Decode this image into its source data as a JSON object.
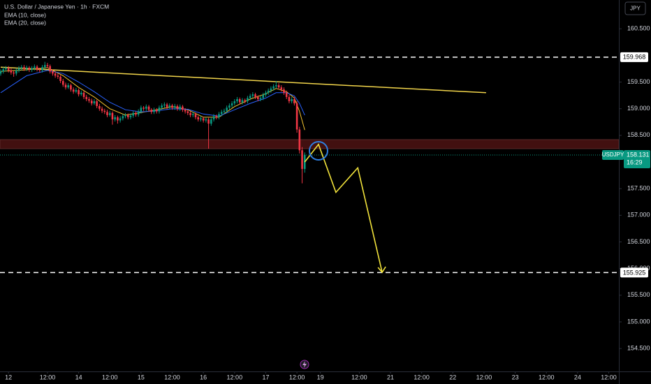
{
  "chart_data": {
    "type": "candlestick",
    "title": "U.S. Dollar / Japanese Yen · 1h · FXCM",
    "indicators": [
      "EMA (10, close)",
      "EMA (20, close)"
    ],
    "currency": "JPY",
    "symbol": "USDJPY",
    "last_price": 158.131,
    "countdown": "16:29",
    "up_color": "#089981",
    "down_color": "#f23645",
    "ylim": [
      154.07,
      161.04
    ],
    "xlim": [
      0,
      238
    ],
    "yticks": [
      {
        "value": 160.5,
        "label": "160.500"
      },
      {
        "value": 159.5,
        "label": "159.500"
      },
      {
        "value": 159,
        "label": "159.000"
      },
      {
        "value": 158.5,
        "label": "158.500"
      },
      {
        "value": 157.5,
        "label": "157.500"
      },
      {
        "value": 157,
        "label": "157.000"
      },
      {
        "value": 156.5,
        "label": "156.500"
      },
      {
        "value": 156,
        "label": "156.000"
      },
      {
        "value": 155.5,
        "label": "155.500"
      },
      {
        "value": 155,
        "label": "155.000"
      },
      {
        "value": 154.5,
        "label": "154.500"
      }
    ],
    "xticks": [
      {
        "value": 3,
        "label": "12"
      },
      {
        "value": 18,
        "label": "12:00"
      },
      {
        "value": 30,
        "label": "14"
      },
      {
        "value": 42,
        "label": "12:00"
      },
      {
        "value": 54,
        "label": "15"
      },
      {
        "value": 66,
        "label": "12:00"
      },
      {
        "value": 78,
        "label": "16"
      },
      {
        "value": 90,
        "label": "12:00"
      },
      {
        "value": 102,
        "label": "17"
      },
      {
        "value": 114,
        "label": "12:00"
      },
      {
        "value": 123,
        "label": "19"
      },
      {
        "value": 138,
        "label": "12:00"
      },
      {
        "value": 150,
        "label": "21"
      },
      {
        "value": 162,
        "label": "12:00"
      },
      {
        "value": 174,
        "label": "22"
      },
      {
        "value": 186,
        "label": "12:00"
      },
      {
        "value": 198,
        "label": "23"
      },
      {
        "value": 210,
        "label": "12:00"
      },
      {
        "value": 222,
        "label": "24"
      },
      {
        "value": 234,
        "label": "12:00"
      }
    ],
    "ohlc": [
      [
        159.66,
        159.74,
        159.62,
        159.7
      ],
      [
        159.7,
        159.78,
        159.66,
        159.74
      ],
      [
        159.74,
        159.8,
        159.7,
        159.76
      ],
      [
        159.76,
        159.8,
        159.68,
        159.72
      ],
      [
        159.72,
        159.76,
        159.64,
        159.68
      ],
      [
        159.68,
        159.71,
        159.6,
        159.66
      ],
      [
        159.66,
        159.76,
        159.62,
        159.72
      ],
      [
        159.72,
        159.8,
        159.68,
        159.76
      ],
      [
        159.76,
        159.82,
        159.72,
        159.78
      ],
      [
        159.78,
        159.82,
        159.71,
        159.75
      ],
      [
        159.75,
        159.81,
        159.71,
        159.77
      ],
      [
        159.77,
        159.8,
        159.69,
        159.73
      ],
      [
        159.73,
        159.8,
        159.69,
        159.76
      ],
      [
        159.76,
        159.83,
        159.72,
        159.79
      ],
      [
        159.79,
        159.82,
        159.7,
        159.74
      ],
      [
        159.74,
        159.77,
        159.68,
        159.72
      ],
      [
        159.72,
        159.82,
        159.68,
        159.78
      ],
      [
        159.78,
        159.88,
        159.74,
        159.82
      ],
      [
        159.82,
        159.86,
        159.76,
        159.8
      ],
      [
        159.8,
        159.83,
        159.66,
        159.7
      ],
      [
        159.7,
        159.74,
        159.62,
        159.66
      ],
      [
        159.66,
        159.7,
        159.58,
        159.62
      ],
      [
        159.62,
        159.66,
        159.56,
        159.6
      ],
      [
        159.6,
        159.63,
        159.48,
        159.52
      ],
      [
        159.52,
        159.56,
        159.41,
        159.45
      ],
      [
        159.45,
        159.49,
        159.36,
        159.4
      ],
      [
        159.4,
        159.48,
        159.37,
        159.44
      ],
      [
        159.44,
        159.47,
        159.32,
        159.36
      ],
      [
        159.36,
        159.4,
        159.28,
        159.32
      ],
      [
        159.32,
        159.39,
        159.29,
        159.35
      ],
      [
        159.35,
        159.38,
        159.23,
        159.27
      ],
      [
        159.27,
        159.34,
        159.24,
        159.3
      ],
      [
        159.3,
        159.33,
        159.18,
        159.22
      ],
      [
        159.22,
        159.26,
        159.14,
        159.18
      ],
      [
        159.18,
        159.22,
        159.11,
        159.15
      ],
      [
        159.15,
        159.19,
        159.06,
        159.1
      ],
      [
        159.1,
        159.18,
        159.07,
        159.14
      ],
      [
        159.14,
        159.17,
        159.01,
        159.05
      ],
      [
        159.05,
        159.09,
        158.96,
        159.0
      ],
      [
        159.0,
        159.04,
        158.92,
        158.96
      ],
      [
        158.96,
        159.0,
        158.9,
        158.94
      ],
      [
        158.94,
        158.98,
        158.84,
        158.88
      ],
      [
        158.88,
        158.96,
        158.85,
        158.92
      ],
      [
        158.92,
        158.95,
        158.7,
        158.8
      ],
      [
        158.8,
        158.88,
        158.76,
        158.84
      ],
      [
        158.84,
        158.87,
        158.72,
        158.78
      ],
      [
        158.78,
        158.86,
        158.74,
        158.82
      ],
      [
        158.82,
        158.9,
        158.78,
        158.86
      ],
      [
        158.86,
        158.92,
        158.82,
        158.88
      ],
      [
        158.88,
        158.91,
        158.8,
        158.84
      ],
      [
        158.84,
        158.91,
        158.8,
        158.87
      ],
      [
        158.87,
        158.96,
        158.83,
        158.92
      ],
      [
        158.92,
        158.95,
        158.85,
        158.89
      ],
      [
        158.89,
        158.99,
        158.85,
        158.95
      ],
      [
        158.95,
        159.06,
        158.91,
        159.02
      ],
      [
        159.02,
        159.05,
        158.96,
        159.0
      ],
      [
        159.0,
        159.08,
        158.96,
        159.04
      ],
      [
        159.04,
        159.07,
        158.94,
        158.98
      ],
      [
        158.98,
        159.01,
        158.9,
        158.94
      ],
      [
        158.94,
        159.02,
        158.9,
        158.98
      ],
      [
        158.98,
        159.01,
        158.91,
        158.95
      ],
      [
        158.95,
        159.06,
        158.91,
        159.02
      ],
      [
        159.02,
        159.1,
        158.98,
        159.06
      ],
      [
        159.06,
        159.12,
        159.02,
        159.08
      ],
      [
        159.08,
        159.11,
        158.99,
        159.03
      ],
      [
        159.03,
        159.1,
        158.99,
        159.06
      ],
      [
        159.06,
        159.09,
        158.98,
        159.02
      ],
      [
        159.02,
        159.09,
        158.98,
        159.05
      ],
      [
        159.05,
        159.08,
        158.96,
        159.0
      ],
      [
        159.0,
        159.08,
        158.96,
        159.04
      ],
      [
        159.04,
        159.07,
        158.94,
        158.98
      ],
      [
        158.98,
        159.01,
        158.91,
        158.95
      ],
      [
        158.95,
        158.98,
        158.88,
        158.92
      ],
      [
        158.92,
        158.95,
        158.84,
        158.88
      ],
      [
        158.88,
        158.94,
        158.84,
        158.9
      ],
      [
        158.9,
        158.93,
        158.8,
        158.84
      ],
      [
        158.84,
        158.87,
        158.76,
        158.8
      ],
      [
        158.8,
        158.86,
        158.76,
        158.82
      ],
      [
        158.82,
        158.85,
        158.74,
        158.78
      ],
      [
        158.78,
        158.84,
        158.74,
        158.8
      ],
      [
        158.8,
        158.83,
        158.25,
        158.72
      ],
      [
        158.72,
        158.84,
        158.68,
        158.8
      ],
      [
        158.8,
        158.9,
        158.76,
        158.86
      ],
      [
        158.86,
        158.89,
        158.8,
        158.84
      ],
      [
        158.84,
        158.94,
        158.8,
        158.9
      ],
      [
        158.9,
        158.98,
        158.86,
        158.94
      ],
      [
        158.94,
        159.0,
        158.9,
        158.96
      ],
      [
        158.96,
        159.06,
        158.92,
        159.02
      ],
      [
        159.02,
        159.1,
        158.98,
        159.06
      ],
      [
        159.06,
        159.14,
        159.02,
        159.1
      ],
      [
        159.1,
        159.18,
        159.06,
        159.14
      ],
      [
        159.14,
        159.22,
        159.1,
        159.18
      ],
      [
        159.18,
        159.21,
        159.08,
        159.12
      ],
      [
        159.12,
        159.2,
        159.08,
        159.16
      ],
      [
        159.16,
        159.19,
        159.1,
        159.14
      ],
      [
        159.14,
        159.24,
        159.1,
        159.2
      ],
      [
        159.2,
        159.28,
        159.16,
        159.24
      ],
      [
        159.24,
        159.31,
        159.2,
        159.27
      ],
      [
        159.27,
        159.3,
        159.18,
        159.22
      ],
      [
        159.22,
        159.25,
        159.14,
        159.18
      ],
      [
        159.18,
        159.24,
        159.14,
        159.2
      ],
      [
        159.2,
        159.3,
        159.16,
        159.26
      ],
      [
        159.26,
        159.34,
        159.22,
        159.3
      ],
      [
        159.3,
        159.38,
        159.26,
        159.34
      ],
      [
        159.34,
        159.42,
        159.3,
        159.38
      ],
      [
        159.38,
        159.46,
        159.34,
        159.42
      ],
      [
        159.42,
        159.52,
        159.38,
        159.44
      ],
      [
        159.44,
        159.48,
        159.36,
        159.4
      ],
      [
        159.4,
        159.44,
        159.32,
        159.36
      ],
      [
        159.36,
        159.4,
        159.26,
        159.3
      ],
      [
        159.3,
        159.34,
        159.18,
        159.22
      ],
      [
        159.22,
        159.26,
        159.1,
        159.14
      ],
      [
        159.14,
        159.22,
        159.1,
        159.18
      ],
      [
        159.18,
        159.22,
        159.06,
        159.1
      ],
      [
        159.1,
        159.14,
        158.55,
        158.61
      ],
      [
        158.61,
        158.66,
        158.16,
        158.22
      ],
      [
        158.22,
        158.28,
        157.6,
        157.87
      ],
      [
        157.87,
        158.18,
        157.8,
        158.13
      ]
    ],
    "ema": [
      {
        "name": "EMA (10, close)",
        "color": "#f7c531",
        "x": [
          0,
          10,
          18,
          24,
          30,
          36,
          42,
          48,
          54,
          60,
          66,
          72,
          78,
          84,
          90,
          96,
          102,
          106,
          110,
          113,
          115,
          117
        ],
        "values": [
          159.7,
          159.73,
          159.77,
          159.62,
          159.4,
          159.22,
          159.0,
          158.88,
          158.93,
          158.98,
          159.04,
          158.98,
          158.84,
          158.84,
          159.04,
          159.18,
          159.28,
          159.38,
          159.32,
          159.2,
          158.95,
          158.6
        ]
      },
      {
        "name": "EMA (20, close)",
        "color": "#2962ff",
        "x": [
          0,
          10,
          18,
          24,
          30,
          36,
          42,
          48,
          54,
          60,
          66,
          72,
          78,
          84,
          90,
          96,
          102,
          106,
          110,
          113,
          115,
          117
        ],
        "values": [
          159.3,
          159.62,
          159.72,
          159.66,
          159.5,
          159.32,
          159.12,
          158.98,
          158.94,
          158.96,
          159.0,
          158.99,
          158.9,
          158.86,
          158.98,
          159.1,
          159.2,
          159.3,
          159.3,
          159.24,
          159.1,
          158.88
        ]
      }
    ],
    "levels": [
      159.968,
      155.925
    ],
    "zone": [
      158.25,
      158.42
    ],
    "trendline": {
      "x": [
        0,
        186.8
      ],
      "values": [
        159.78,
        159.3
      ]
    },
    "marker": {
      "x": 122.3,
      "y": 158.21
    },
    "projection": {
      "x": [
        117,
        122.3,
        129,
        137.4,
        146.8
      ],
      "values": [
        158.0,
        158.33,
        157.43,
        157.89,
        155.93
      ]
    }
  }
}
